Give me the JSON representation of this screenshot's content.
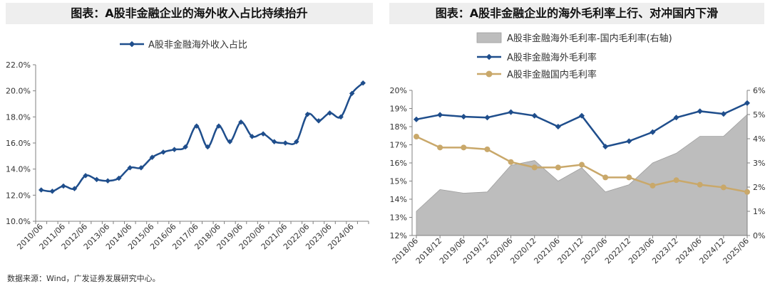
{
  "source": "数据来源：Wind，广发证券发展研究中心。",
  "chart_data": [
    {
      "type": "line",
      "title": "图表：A股非金融企业的海外收入占比持续抬升",
      "legend_position": "top-center",
      "x": [
        "2010/06",
        "2010/12",
        "2011/06",
        "2011/12",
        "2012/06",
        "2012/12",
        "2013/06",
        "2013/12",
        "2014/06",
        "2014/12",
        "2015/06",
        "2015/12",
        "2016/06",
        "2016/12",
        "2017/06",
        "2017/12",
        "2018/06",
        "2018/12",
        "2019/06",
        "2019/12",
        "2020/06",
        "2020/12",
        "2021/06",
        "2021/12",
        "2022/06",
        "2022/12",
        "2023/06",
        "2023/12",
        "2024/06",
        "2024/12"
      ],
      "x_tick_labels": [
        "2010/06",
        "2011/06",
        "2012/06",
        "2013/06",
        "2014/06",
        "2015/06",
        "2016/06",
        "2017/06",
        "2018/06",
        "2019/06",
        "2020/06",
        "2021/06",
        "2022/06",
        "2023/06",
        "2024/06"
      ],
      "series": [
        {
          "name": "A股非金融海外收入占比",
          "color": "#1f4e8c",
          "values": [
            12.4,
            12.3,
            12.7,
            12.5,
            13.5,
            13.2,
            13.1,
            13.3,
            14.1,
            14.1,
            14.9,
            15.3,
            15.5,
            15.7,
            17.3,
            15.7,
            17.3,
            16.1,
            17.6,
            16.5,
            16.7,
            16.1,
            16.0,
            16.1,
            18.2,
            17.7,
            18.3,
            18.0,
            19.8,
            20.6
          ]
        }
      ],
      "ylim": [
        10,
        22
      ],
      "y_ticks": [
        10,
        12,
        14,
        16,
        18,
        20,
        22
      ],
      "y_tick_labels": [
        "10.0%",
        "12.0%",
        "14.0%",
        "16.0%",
        "18.0%",
        "20.0%",
        "22.0%"
      ]
    },
    {
      "type": "line",
      "title": "图表：A股非金融企业的海外毛利率上行、对冲国内下滑",
      "legend_position": "top-left",
      "x": [
        "2018/06",
        "2018/12",
        "2019/06",
        "2019/12",
        "2020/06",
        "2020/12",
        "2021/06",
        "2021/12",
        "2022/06",
        "2022/12",
        "2023/06",
        "2023/12",
        "2024/06",
        "2024/12",
        "2025/06"
      ],
      "series": [
        {
          "name": "A股非金融海外毛利率-国内毛利率(右轴)",
          "type": "area",
          "axis": "right",
          "color": "#bdbdbd",
          "values": [
            1.0,
            1.9,
            1.75,
            1.8,
            2.9,
            3.1,
            2.25,
            2.8,
            1.8,
            2.1,
            3.0,
            3.4,
            4.1,
            4.1,
            5.0
          ]
        },
        {
          "name": "A股非金融海外毛利率",
          "type": "line",
          "axis": "left",
          "color": "#1f4e8c",
          "values": [
            18.4,
            18.65,
            18.55,
            18.5,
            18.8,
            18.6,
            18.0,
            18.6,
            16.9,
            17.2,
            17.7,
            18.5,
            18.85,
            18.7,
            19.3
          ]
        },
        {
          "name": "A股非金融国内毛利率",
          "type": "line",
          "axis": "left",
          "color": "#c9a86a",
          "values": [
            17.45,
            16.85,
            16.85,
            16.75,
            16.05,
            15.75,
            15.75,
            15.9,
            15.2,
            15.2,
            14.75,
            15.05,
            14.8,
            14.65,
            14.4
          ]
        }
      ],
      "ylim": [
        12,
        20
      ],
      "y_ticks": [
        12,
        13,
        14,
        15,
        16,
        17,
        18,
        19,
        20
      ],
      "y_tick_labels": [
        "12%",
        "13%",
        "14%",
        "15%",
        "16%",
        "17%",
        "18%",
        "19%",
        "20%"
      ],
      "y2lim": [
        0,
        6
      ],
      "y2_ticks": [
        0,
        1,
        2,
        3,
        4,
        5,
        6
      ],
      "y2_tick_labels": [
        "0%",
        "1%",
        "2%",
        "3%",
        "4%",
        "5%",
        "6%"
      ]
    }
  ]
}
